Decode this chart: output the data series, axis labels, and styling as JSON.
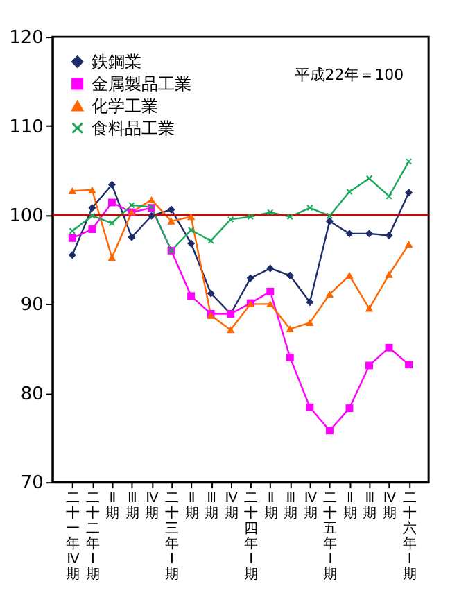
{
  "chart_data": {
    "type": "line",
    "categories": [
      "二十一年Ⅳ期",
      "二十二年Ⅰ期",
      "Ⅱ期",
      "Ⅲ期",
      "Ⅳ期",
      "二十三年Ⅰ期",
      "Ⅱ期",
      "Ⅲ期",
      "Ⅳ期",
      "二十四年Ⅰ期",
      "Ⅱ期",
      "Ⅲ期",
      "Ⅳ期",
      "二十五年Ⅰ期",
      "Ⅱ期",
      "Ⅲ期",
      "Ⅳ期",
      "二十六年Ⅰ期"
    ],
    "series": [
      {
        "name": "鉄鋼業",
        "color": "#1f2d6b",
        "marker": "diamond",
        "values": [
          95.5,
          100.8,
          103.4,
          97.5,
          99.9,
          100.6,
          96.8,
          91.2,
          88.9,
          92.9,
          94.0,
          93.2,
          90.2,
          99.3,
          97.9,
          97.9,
          97.7,
          102.5
        ]
      },
      {
        "name": "金属製品工業",
        "color": "#ff00ff",
        "marker": "square",
        "values": [
          97.4,
          98.4,
          101.4,
          100.3,
          100.8,
          96.0,
          90.9,
          88.9,
          88.9,
          90.1,
          91.4,
          84.0,
          78.4,
          75.8,
          78.3,
          83.1,
          85.1,
          83.2
        ]
      },
      {
        "name": "化学工業",
        "color": "#ff6600",
        "marker": "triangle",
        "values": [
          102.7,
          102.8,
          95.2,
          100.3,
          101.7,
          99.3,
          99.8,
          88.7,
          87.1,
          90.0,
          90.0,
          87.2,
          87.9,
          91.1,
          93.2,
          89.5,
          93.3,
          96.7
        ]
      },
      {
        "name": "食料品工業",
        "color": "#1aa85a",
        "marker": "cross",
        "values": [
          98.2,
          99.9,
          99.1,
          101.1,
          100.9,
          96.0,
          98.3,
          97.1,
          99.5,
          99.8,
          100.3,
          99.8,
          100.8,
          99.9,
          102.6,
          104.1,
          102.1,
          106.0
        ]
      }
    ],
    "ylim": [
      70,
      120
    ],
    "yticks": [
      70,
      80,
      90,
      100,
      110,
      120
    ],
    "ref_lines": [
      {
        "axis": "y",
        "value": 100,
        "color": "#e00000"
      }
    ],
    "annotations": [
      "平成22年＝100"
    ],
    "legend": "top left",
    "grid": false
  }
}
